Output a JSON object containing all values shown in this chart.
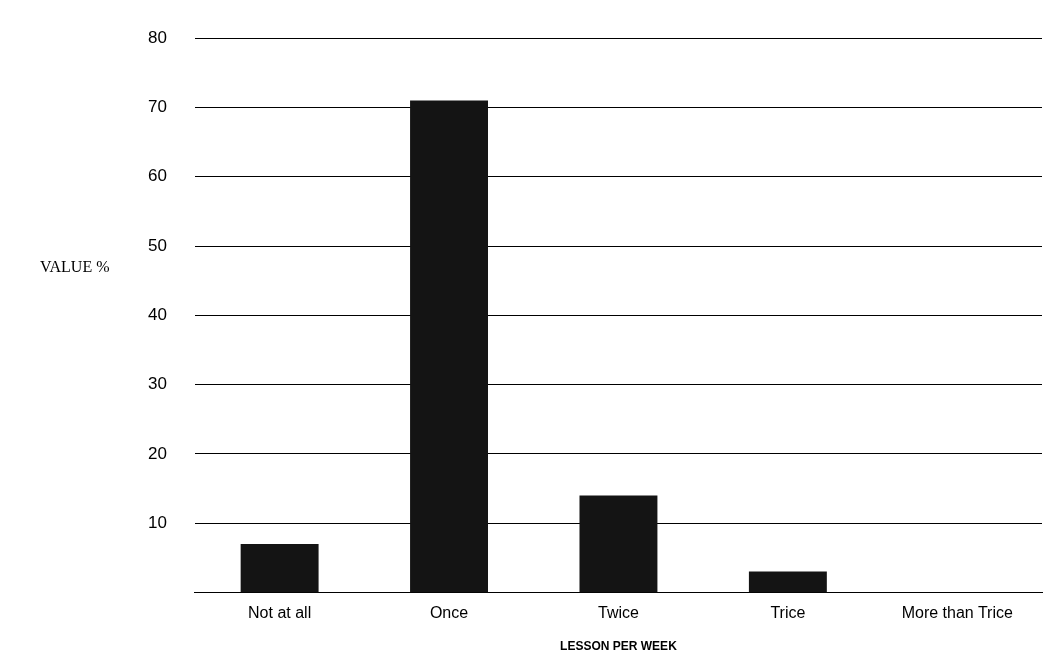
{
  "chart_data": {
    "type": "bar",
    "xlabel": "LESSON PER WEEK",
    "ylabel": "VALUE %",
    "categories": [
      "Not at all",
      "Once",
      "Twice",
      "Trice",
      "More than Trice"
    ],
    "values": [
      7,
      71,
      14,
      3,
      0
    ],
    "color": "#141414",
    "ylim": [
      0,
      80
    ],
    "yticks": [
      10,
      20,
      30,
      40,
      50,
      60,
      70,
      80
    ],
    "grid": "y"
  }
}
